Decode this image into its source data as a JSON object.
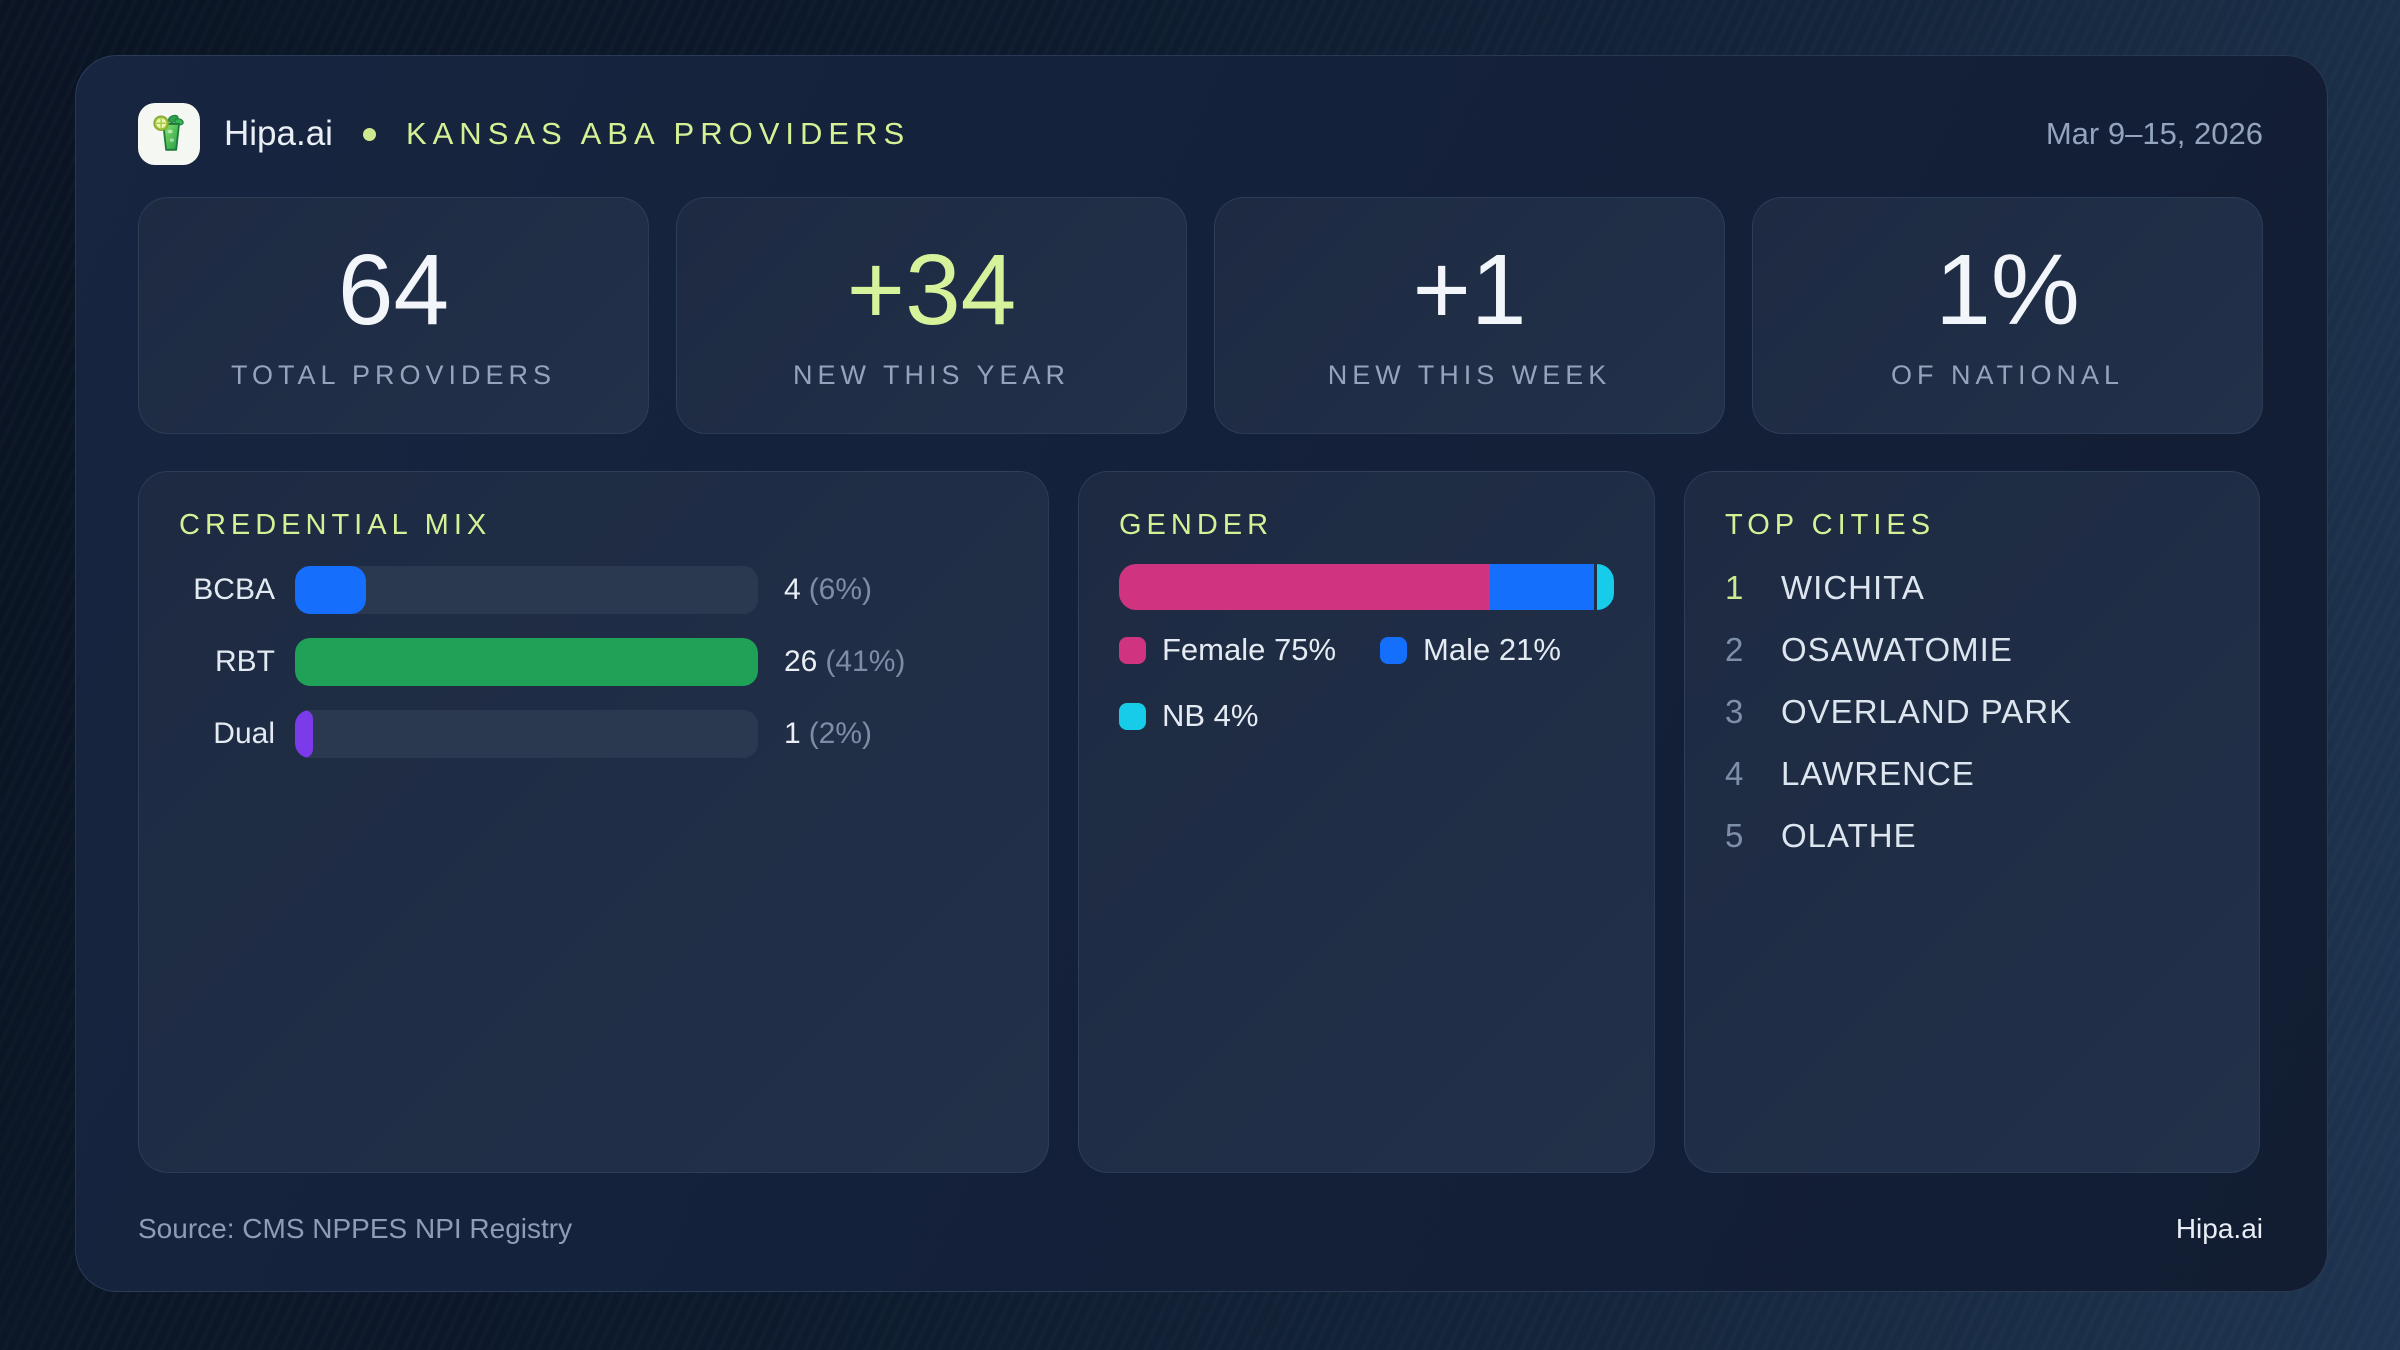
{
  "header": {
    "brand": "Hipa.ai",
    "title": "KANSAS ABA PROVIDERS",
    "date_range": "Mar 9–15, 2026"
  },
  "stats": [
    {
      "value": "64",
      "label": "TOTAL PROVIDERS"
    },
    {
      "value": "+34",
      "label": "NEW THIS YEAR"
    },
    {
      "value": "+1",
      "label": "NEW THIS WEEK"
    },
    {
      "value": "1%",
      "label": "OF NATIONAL"
    }
  ],
  "credential_mix": {
    "title": "CREDENTIAL MIX",
    "rows": [
      {
        "label": "BCBA",
        "count": "4",
        "pct_text": "(6%)",
        "fill_pct": 15.4,
        "color": "#156ffc"
      },
      {
        "label": "RBT",
        "count": "26",
        "pct_text": "(41%)",
        "fill_pct": 100,
        "color": "#1fa257"
      },
      {
        "label": "Dual",
        "count": "1",
        "pct_text": "(2%)",
        "fill_pct": 3.8,
        "color": "#7c3bea"
      }
    ]
  },
  "gender": {
    "title": "GENDER",
    "segments": [
      {
        "name": "Female",
        "pct": 75,
        "color": "#d03380"
      },
      {
        "name": "Male",
        "pct": 21,
        "color": "#146ffc"
      },
      {
        "name": "NB",
        "pct": 4,
        "color": "#17cce8"
      }
    ],
    "legend": [
      {
        "text": "Female 75%",
        "color": "#d03380"
      },
      {
        "text": "Male 21%",
        "color": "#146ffc"
      },
      {
        "text": "NB 4%",
        "color": "#17cce8"
      }
    ]
  },
  "top_cities": {
    "title": "TOP CITIES",
    "items": [
      {
        "rank": "1",
        "city": "WICHITA"
      },
      {
        "rank": "2",
        "city": "OSAWATOMIE"
      },
      {
        "rank": "3",
        "city": "OVERLAND PARK"
      },
      {
        "rank": "4",
        "city": "LAWRENCE"
      },
      {
        "rank": "5",
        "city": "OLATHE"
      }
    ]
  },
  "footer": {
    "source": "Source: CMS NPPES NPI Registry",
    "brand": "Hipa.ai"
  },
  "colors": {
    "accent_green": "#d6f29b",
    "title_green": "#d6f195",
    "bar_blue": "#156ffc",
    "bar_green": "#1fa257",
    "bar_purple": "#7c3bea",
    "gender_pink": "#d03380",
    "gender_blue": "#146ffc",
    "gender_cyan": "#17cce8",
    "muted_text": "#94a4bb",
    "card_bg": "#1e2c44",
    "page_bg": "#0d1a2d"
  },
  "chart_data": [
    {
      "type": "bar",
      "orientation": "horizontal",
      "title": "CREDENTIAL MIX",
      "categories": [
        "BCBA",
        "RBT",
        "Dual"
      ],
      "values": [
        4,
        26,
        1
      ],
      "percent_of_total": [
        6,
        41,
        2
      ],
      "value_labels": [
        "4 (6%)",
        "26 (41%)",
        "1 (2%)"
      ],
      "bar_colors": [
        "#156ffc",
        "#1fa257",
        "#7c3bea"
      ],
      "xlabel": "",
      "ylabel": "",
      "grid": false,
      "note": "bar lengths scaled relative to max value 26"
    },
    {
      "type": "bar",
      "subtype": "stacked-100-percent",
      "title": "GENDER",
      "categories": [
        "Female",
        "Male",
        "NB"
      ],
      "values": [
        75,
        21,
        4
      ],
      "unit": "%",
      "bar_colors": [
        "#d03380",
        "#146ffc",
        "#17cce8"
      ],
      "legend_position": "below",
      "legend": [
        "Female 75%",
        "Male 21%",
        "NB 4%"
      ]
    },
    {
      "type": "table",
      "title": "TOP CITIES",
      "categories": [
        "1",
        "2",
        "3",
        "4",
        "5"
      ],
      "values": [
        "WICHITA",
        "OSAWATOMIE",
        "OVERLAND PARK",
        "LAWRENCE",
        "OLATHE"
      ]
    }
  ]
}
